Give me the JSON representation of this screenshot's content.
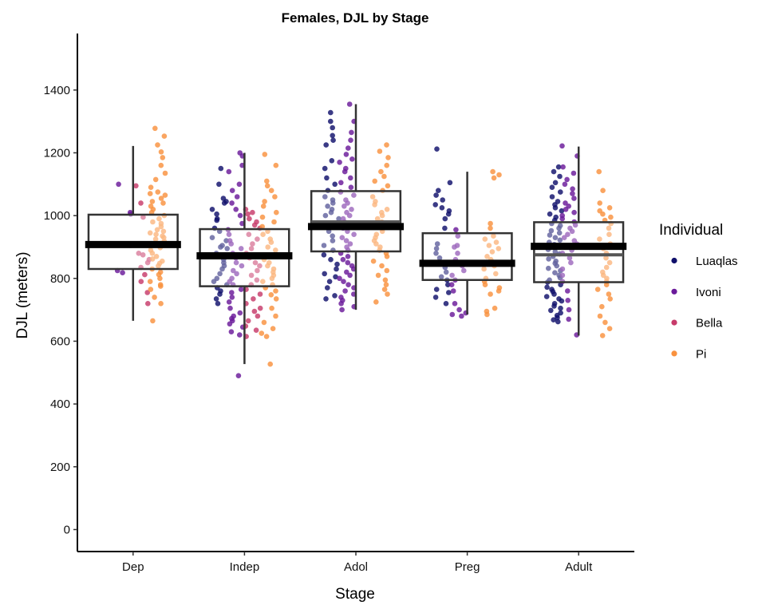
{
  "chart_data": {
    "type": "box",
    "title": "Females, DJL by Stage",
    "xlabel": "Stage",
    "ylabel": "DJL (meters)",
    "categories": [
      "Dep",
      "Indep",
      "Adol",
      "Preg",
      "Adult"
    ],
    "ylim": [
      -70,
      1580
    ],
    "yticks": [
      0,
      200,
      400,
      600,
      800,
      1000,
      1200,
      1400
    ],
    "grid": false,
    "legend": {
      "title": "Individual",
      "position": "right",
      "entries": [
        {
          "name": "Luaqlas",
          "color": "#10106b"
        },
        {
          "name": "Ivoni",
          "color": "#6a1a9a"
        },
        {
          "name": "Bella",
          "color": "#c73a6a"
        },
        {
          "name": "Pi",
          "color": "#f9913e"
        }
      ]
    },
    "boxes": [
      {
        "category": "Dep",
        "whisker_low": 665,
        "q1": 830,
        "median": 905,
        "q3": 1003,
        "whisker_high": 1222,
        "mean": 908
      },
      {
        "category": "Indep",
        "whisker_low": 527,
        "q1": 775,
        "median": 868,
        "q3": 957,
        "whisker_high": 1200,
        "mean": 872
      },
      {
        "category": "Adol",
        "whisker_low": 700,
        "q1": 886,
        "median": 980,
        "q3": 1078,
        "whisker_high": 1355,
        "mean": 965
      },
      {
        "category": "Preg",
        "whisker_low": 685,
        "q1": 795,
        "median": 848,
        "q3": 944,
        "whisker_high": 1140,
        "mean": 848
      },
      {
        "category": "Adult",
        "whisker_low": 618,
        "q1": 788,
        "median": 875,
        "q3": 979,
        "whisker_high": 1220,
        "mean": 902
      }
    ],
    "points": [
      {
        "category": "Dep",
        "individual": "Ivoni",
        "values": [
          1010,
          1005,
          825,
          818,
          905,
          1100
        ]
      },
      {
        "category": "Dep",
        "individual": "Bella",
        "values": [
          1095,
          1040,
          880,
          875,
          850,
          835,
          812,
          790,
          755,
          720,
          995,
          860
        ]
      },
      {
        "category": "Dep",
        "individual": "Pi",
        "values": [
          1278,
          1253,
          1225,
          1203,
          1185,
          1160,
          1135,
          1115,
          1090,
          1075,
          1070,
          1065,
          1055,
          1045,
          1040,
          1030,
          1020,
          1010,
          1000,
          990,
          980,
          975,
          965,
          955,
          950,
          945,
          940,
          935,
          930,
          925,
          918,
          912,
          905,
          898,
          890,
          880,
          870,
          862,
          855,
          848,
          840,
          830,
          820,
          812,
          800,
          790,
          780,
          775,
          765,
          740,
          720,
          665
        ]
      },
      {
        "category": "Indep",
        "individual": "Luaqlas",
        "values": [
          1150,
          1100,
          1055,
          1045,
          1040,
          1020,
          1005,
          990,
          985,
          960,
          950,
          930,
          920,
          905,
          900,
          895,
          880,
          870,
          860,
          850,
          840,
          830,
          815,
          800,
          790,
          780,
          770,
          760,
          750,
          735,
          720
        ]
      },
      {
        "category": "Indep",
        "individual": "Ivoni",
        "values": [
          1200,
          1190,
          1160,
          1140,
          1100,
          1080,
          1060,
          1040,
          1020,
          1000,
          975,
          955,
          940,
          920,
          910,
          895,
          880,
          865,
          850,
          840,
          825,
          815,
          800,
          790,
          780,
          765,
          755,
          740,
          725,
          705,
          690,
          680,
          672,
          665,
          655,
          645,
          630,
          620,
          490
        ]
      },
      {
        "category": "Indep",
        "individual": "Bella",
        "values": [
          1020,
          1010,
          1005,
          990,
          980,
          970,
          960,
          940,
          925,
          910,
          895,
          880,
          865,
          850,
          840,
          825,
          810,
          795,
          780,
          765,
          750,
          735,
          720,
          705,
          695,
          680,
          665,
          648,
          635,
          615
        ]
      },
      {
        "category": "Indep",
        "individual": "Pi",
        "values": [
          1195,
          1160,
          1110,
          1095,
          1080,
          1060,
          1045,
          1030,
          1010,
          995,
          980,
          965,
          950,
          940,
          925,
          915,
          900,
          890,
          875,
          860,
          850,
          840,
          830,
          820,
          810,
          800,
          790,
          780,
          770,
          760,
          748,
          735,
          705,
          680,
          660,
          640,
          625,
          615,
          527
        ]
      },
      {
        "category": "Adol",
        "individual": "Luaqlas",
        "values": [
          1328,
          1300,
          1280,
          1255,
          1240,
          1225,
          1175,
          1150,
          1120,
          1100,
          1080,
          1060,
          1050,
          1040,
          1030,
          1020,
          1010,
          1000,
          990,
          975,
          965,
          950,
          935,
          920,
          905,
          890,
          875,
          860,
          845,
          830,
          815,
          805,
          790,
          770,
          745,
          735
        ]
      },
      {
        "category": "Adol",
        "individual": "Ivoni",
        "values": [
          1355,
          1300,
          1265,
          1240,
          1215,
          1195,
          1180,
          1170,
          1150,
          1140,
          1120,
          1105,
          1090,
          1075,
          1065,
          1050,
          1040,
          1030,
          1020,
          1010,
          1000,
          990,
          980,
          970,
          960,
          950,
          940,
          930,
          920,
          910,
          900,
          890,
          880,
          870,
          860,
          850,
          840,
          830,
          820,
          810,
          800,
          790,
          780,
          770,
          760,
          750,
          740,
          730,
          720,
          710,
          700
        ]
      },
      {
        "category": "Adol",
        "individual": "Pi",
        "values": [
          1225,
          1205,
          1185,
          1160,
          1140,
          1125,
          1110,
          1095,
          1080,
          1060,
          1045,
          1035,
          1020,
          1010,
          1000,
          990,
          980,
          970,
          960,
          950,
          940,
          930,
          920,
          910,
          900,
          890,
          880,
          870,
          855,
          840,
          825,
          810,
          795,
          780,
          765,
          750,
          725
        ]
      },
      {
        "category": "Preg",
        "individual": "Luaqlas",
        "values": [
          1212,
          1105,
          1080,
          1065,
          1050,
          1035,
          1025,
          1015,
          1005,
          990,
          960,
          910,
          895,
          880,
          865,
          850,
          835,
          820,
          805,
          795,
          780,
          765,
          755,
          740,
          720
        ]
      },
      {
        "category": "Preg",
        "individual": "Ivoni",
        "values": [
          955,
          935,
          905,
          900,
          880,
          860,
          840,
          825,
          810,
          795,
          780,
          760,
          720,
          700,
          690,
          685,
          680
        ]
      },
      {
        "category": "Preg",
        "individual": "Pi",
        "values": [
          1140,
          1130,
          1120,
          975,
          960,
          935,
          925,
          915,
          905,
          895,
          885,
          870,
          860,
          850,
          840,
          830,
          815,
          800,
          790,
          780,
          770,
          760,
          750,
          705,
          695,
          685
        ]
      },
      {
        "category": "Adult",
        "individual": "Luaqlas",
        "values": [
          1155,
          1140,
          1125,
          1105,
          1090,
          1075,
          1060,
          1045,
          1035,
          1025,
          1015,
          1005,
          995,
          985,
          975,
          968,
          960,
          952,
          945,
          938,
          930,
          922,
          915,
          908,
          900,
          892,
          885,
          878,
          870,
          862,
          855,
          848,
          840,
          832,
          825,
          818,
          810,
          802,
          795,
          788,
          780,
          772,
          765,
          758,
          750,
          742,
          735,
          728,
          720,
          712,
          705,
          698,
          690,
          682,
          675,
          668,
          662
        ]
      },
      {
        "category": "Adult",
        "individual": "Ivoni",
        "values": [
          1222,
          1190,
          1155,
          1135,
          1115,
          1100,
          1085,
          1070,
          1055,
          1040,
          1030,
          1020,
          1010,
          1000,
          990,
          980,
          970,
          960,
          950,
          940,
          930,
          920,
          910,
          900,
          890,
          880,
          865,
          850,
          830,
          810,
          790,
          760,
          730,
          700,
          670,
          620
        ]
      },
      {
        "category": "Adult",
        "individual": "Pi",
        "values": [
          1140,
          1080,
          1040,
          1025,
          1015,
          1005,
          995,
          985,
          975,
          960,
          940,
          925,
          910,
          895,
          880,
          865,
          850,
          835,
          820,
          810,
          800,
          790,
          780,
          765,
          750,
          735,
          710,
          680,
          660,
          640,
          618
        ]
      }
    ]
  }
}
